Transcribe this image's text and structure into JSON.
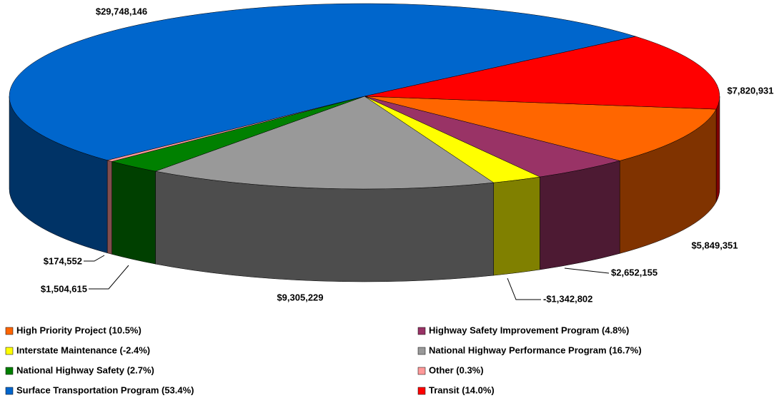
{
  "chart_data": {
    "type": "pie",
    "categories": [
      "High Priority Project (10.5%)",
      "Highway Safety Improvement Program (4.8%)",
      "Interstate Maintenance (-2.4%)",
      "National Highway Performance Program (16.7%)",
      "National Highway Safety (2.7%)",
      "Other (0.3%)",
      "Surface Transportation Program (53.4%)",
      "Transit (14.0%)"
    ],
    "values": [
      5849351,
      2652155,
      -1342802,
      9305229,
      1504615,
      174552,
      29748146,
      7820931
    ],
    "value_labels": [
      "$5,849,351",
      "$2,652,155",
      "-$1,342,802",
      "$9,305,229",
      "$1,504,615",
      "$174,552",
      "$29,748,146",
      "$7,820,931"
    ],
    "colors": [
      "#ff6600",
      "#993366",
      "#ffff00",
      "#999999",
      "#008000",
      "#ff9999",
      "#0066cc",
      "#ff0000"
    ],
    "legend": "bottom"
  }
}
